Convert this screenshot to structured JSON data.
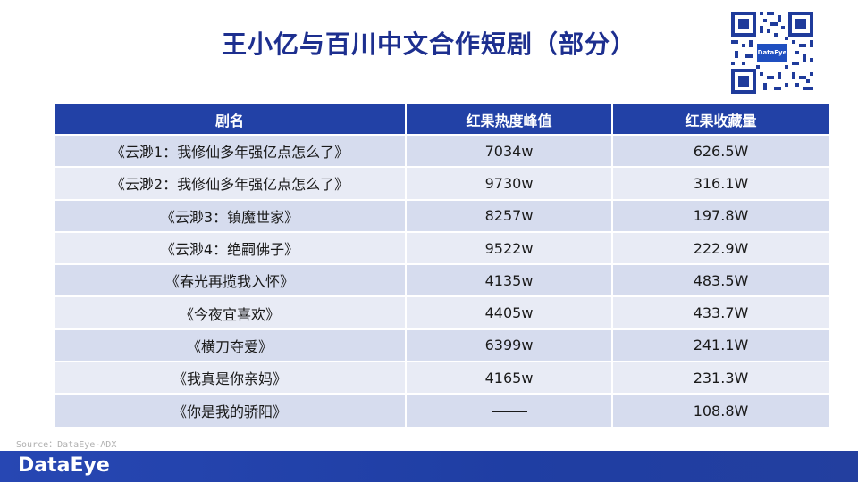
{
  "title": "王小亿与百川中文合作短剧（部分）",
  "watermark": "DataEye",
  "qr_logo": "DataEye",
  "table": {
    "headers": [
      "剧名",
      "红果热度峰值",
      "红果收藏量"
    ],
    "rows": [
      {
        "name": "《云渺1：我修仙多年强亿点怎么了》",
        "peak": "7034w",
        "fav": "626.5W"
      },
      {
        "name": "《云渺2：我修仙多年强亿点怎么了》",
        "peak": "9730w",
        "fav": "316.1W"
      },
      {
        "name": "《云渺3：镇魔世家》",
        "peak": "8257w",
        "fav": "197.8W"
      },
      {
        "name": "《云渺4：绝嗣佛子》",
        "peak": "9522w",
        "fav": "222.9W"
      },
      {
        "name": "《春光再揽我入怀》",
        "peak": "4135w",
        "fav": "483.5W"
      },
      {
        "name": "《今夜宜喜欢》",
        "peak": "4405w",
        "fav": "433.7W"
      },
      {
        "name": "《横刀夺爱》",
        "peak": "6399w",
        "fav": "241.1W"
      },
      {
        "name": "《我真是你亲妈》",
        "peak": "4165w",
        "fav": "231.3W"
      },
      {
        "name": "《你是我的骄阳》",
        "peak": "",
        "fav": "108.8W"
      }
    ]
  },
  "source": "Source：DataEye-ADX",
  "footer_logo": "DataEye",
  "colors": {
    "title": "#1d2f8f",
    "header_bg": "#2241a6",
    "row_odd": "#d6dcee",
    "row_even": "#e8ebf5",
    "footer_bg": "#2747b3"
  }
}
